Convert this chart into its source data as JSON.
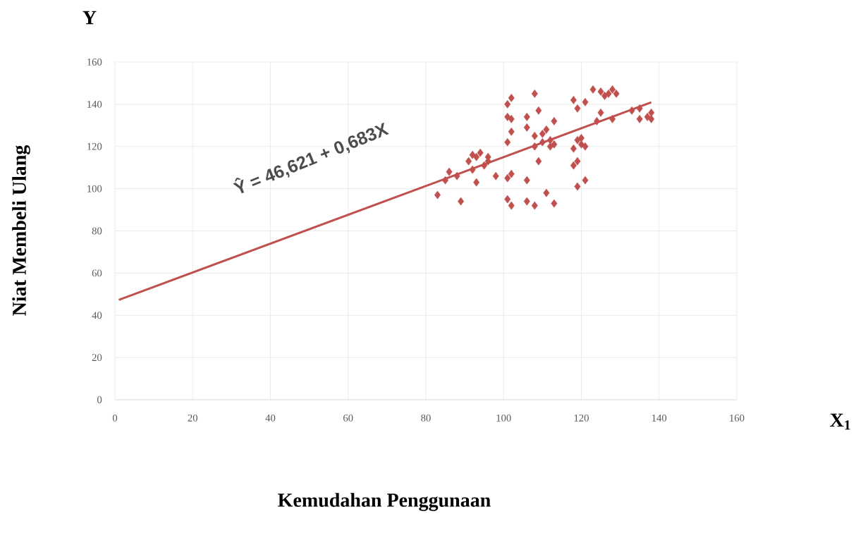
{
  "chart_data": {
    "type": "scatter",
    "xlabel": "Kemudahan Penggunaan",
    "ylabel": "Niat Membeli Ulang",
    "annotations": [
      "Y",
      "X$_{1}$",
      "Ŷ  =  46,621 + 0,683X"
    ],
    "xlim": [
      0,
      160
    ],
    "ylim": [
      0,
      160
    ],
    "xticks": [
      0,
      20,
      40,
      60,
      80,
      100,
      120,
      140,
      160
    ],
    "yticks": [
      0,
      20,
      40,
      60,
      80,
      100,
      120,
      140,
      160
    ],
    "grid": true,
    "marker": "diamond",
    "series": [
      {
        "type": "scatter",
        "color": "#c0504d",
        "x": [
          83,
          85,
          86,
          88,
          89,
          91,
          92,
          92,
          93,
          94,
          95,
          93,
          96,
          96,
          98,
          101,
          101,
          101,
          101,
          101,
          102,
          102,
          102,
          102,
          102,
          106,
          106,
          106,
          106,
          108,
          108,
          108,
          108,
          109,
          109,
          110,
          110,
          111,
          111,
          112,
          112,
          113,
          113,
          113,
          118,
          118,
          118,
          119,
          119,
          119,
          119,
          120,
          120,
          121,
          121,
          121,
          123,
          124,
          125,
          125,
          126,
          127,
          128,
          128,
          129,
          133,
          135,
          135,
          137,
          138,
          138
        ],
        "values": [
          97,
          104,
          108,
          106,
          94,
          113,
          116,
          109,
          103,
          117,
          111,
          115,
          115,
          113,
          106,
          95,
          105,
          122,
          134,
          140,
          92,
          107,
          127,
          133,
          143,
          104,
          94,
          129,
          134,
          92,
          145,
          120,
          125,
          113,
          137,
          122,
          126,
          98,
          128,
          123,
          120,
          93,
          132,
          121,
          111,
          119,
          142,
          113,
          101,
          138,
          123,
          121,
          124,
          104,
          141,
          120,
          147,
          132,
          136,
          146,
          144,
          145,
          147,
          133,
          145,
          137,
          138,
          133,
          134,
          136,
          133
        ]
      },
      {
        "type": "line",
        "color": "#c0504d",
        "marker": "none",
        "x": [
          1,
          138
        ],
        "values": [
          47.3,
          140.9
        ]
      }
    ]
  }
}
